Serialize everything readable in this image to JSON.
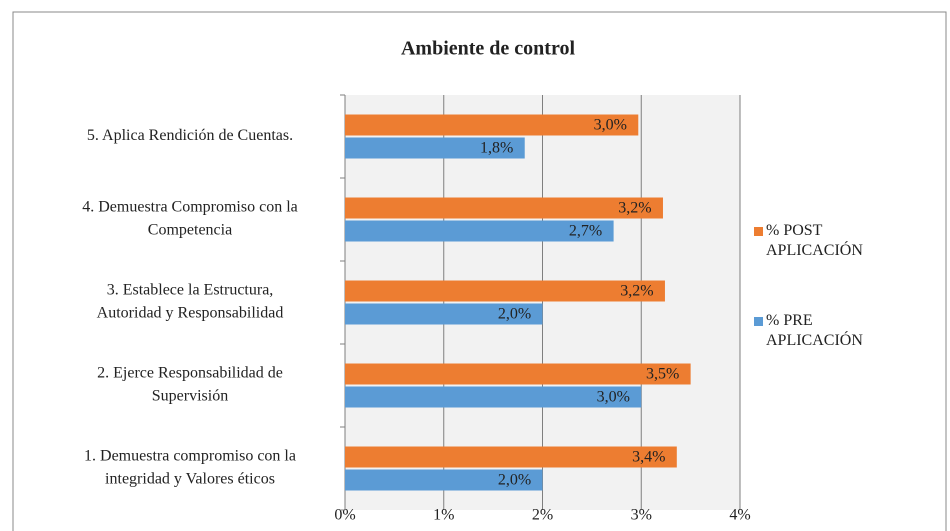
{
  "chart_data": {
    "type": "hbar",
    "title": "Ambiente de control",
    "categories": [
      [
        "1. Demuestra compromiso con la",
        "integridad y Valores éticos"
      ],
      [
        "2. Ejerce Responsabilidad de",
        "Supervisión"
      ],
      [
        "3. Establece la Estructura,",
        "Autoridad y Responsabilidad"
      ],
      [
        "4. Demuestra Compromiso con la",
        "Competencia"
      ],
      [
        "5. Aplica Rendición de Cuentas."
      ]
    ],
    "series": [
      {
        "name": "% POST APLICACIÓN",
        "color": "#ed7d31",
        "values": [
          3.36,
          3.5,
          3.24,
          3.22,
          2.97
        ],
        "value_labels": [
          "3,4%",
          "3,5%",
          "3,2%",
          "3,2%",
          "3,0%"
        ]
      },
      {
        "name": "% PRE APLICACIÓN",
        "color": "#5b9bd5",
        "values": [
          2.0,
          3.0,
          2.0,
          2.72,
          1.82
        ],
        "value_labels": [
          "2,0%",
          "3,0%",
          "2,0%",
          "2,7%",
          "1,8%"
        ]
      }
    ],
    "xlim": [
      0,
      4
    ],
    "xticks": [
      {
        "value": 0,
        "label": "0%"
      },
      {
        "value": 1,
        "label": "1%"
      },
      {
        "value": 2,
        "label": "2%"
      },
      {
        "value": 3,
        "label": "3%"
      },
      {
        "value": 4,
        "label": "4%"
      }
    ],
    "grid": true,
    "legend": "right"
  }
}
